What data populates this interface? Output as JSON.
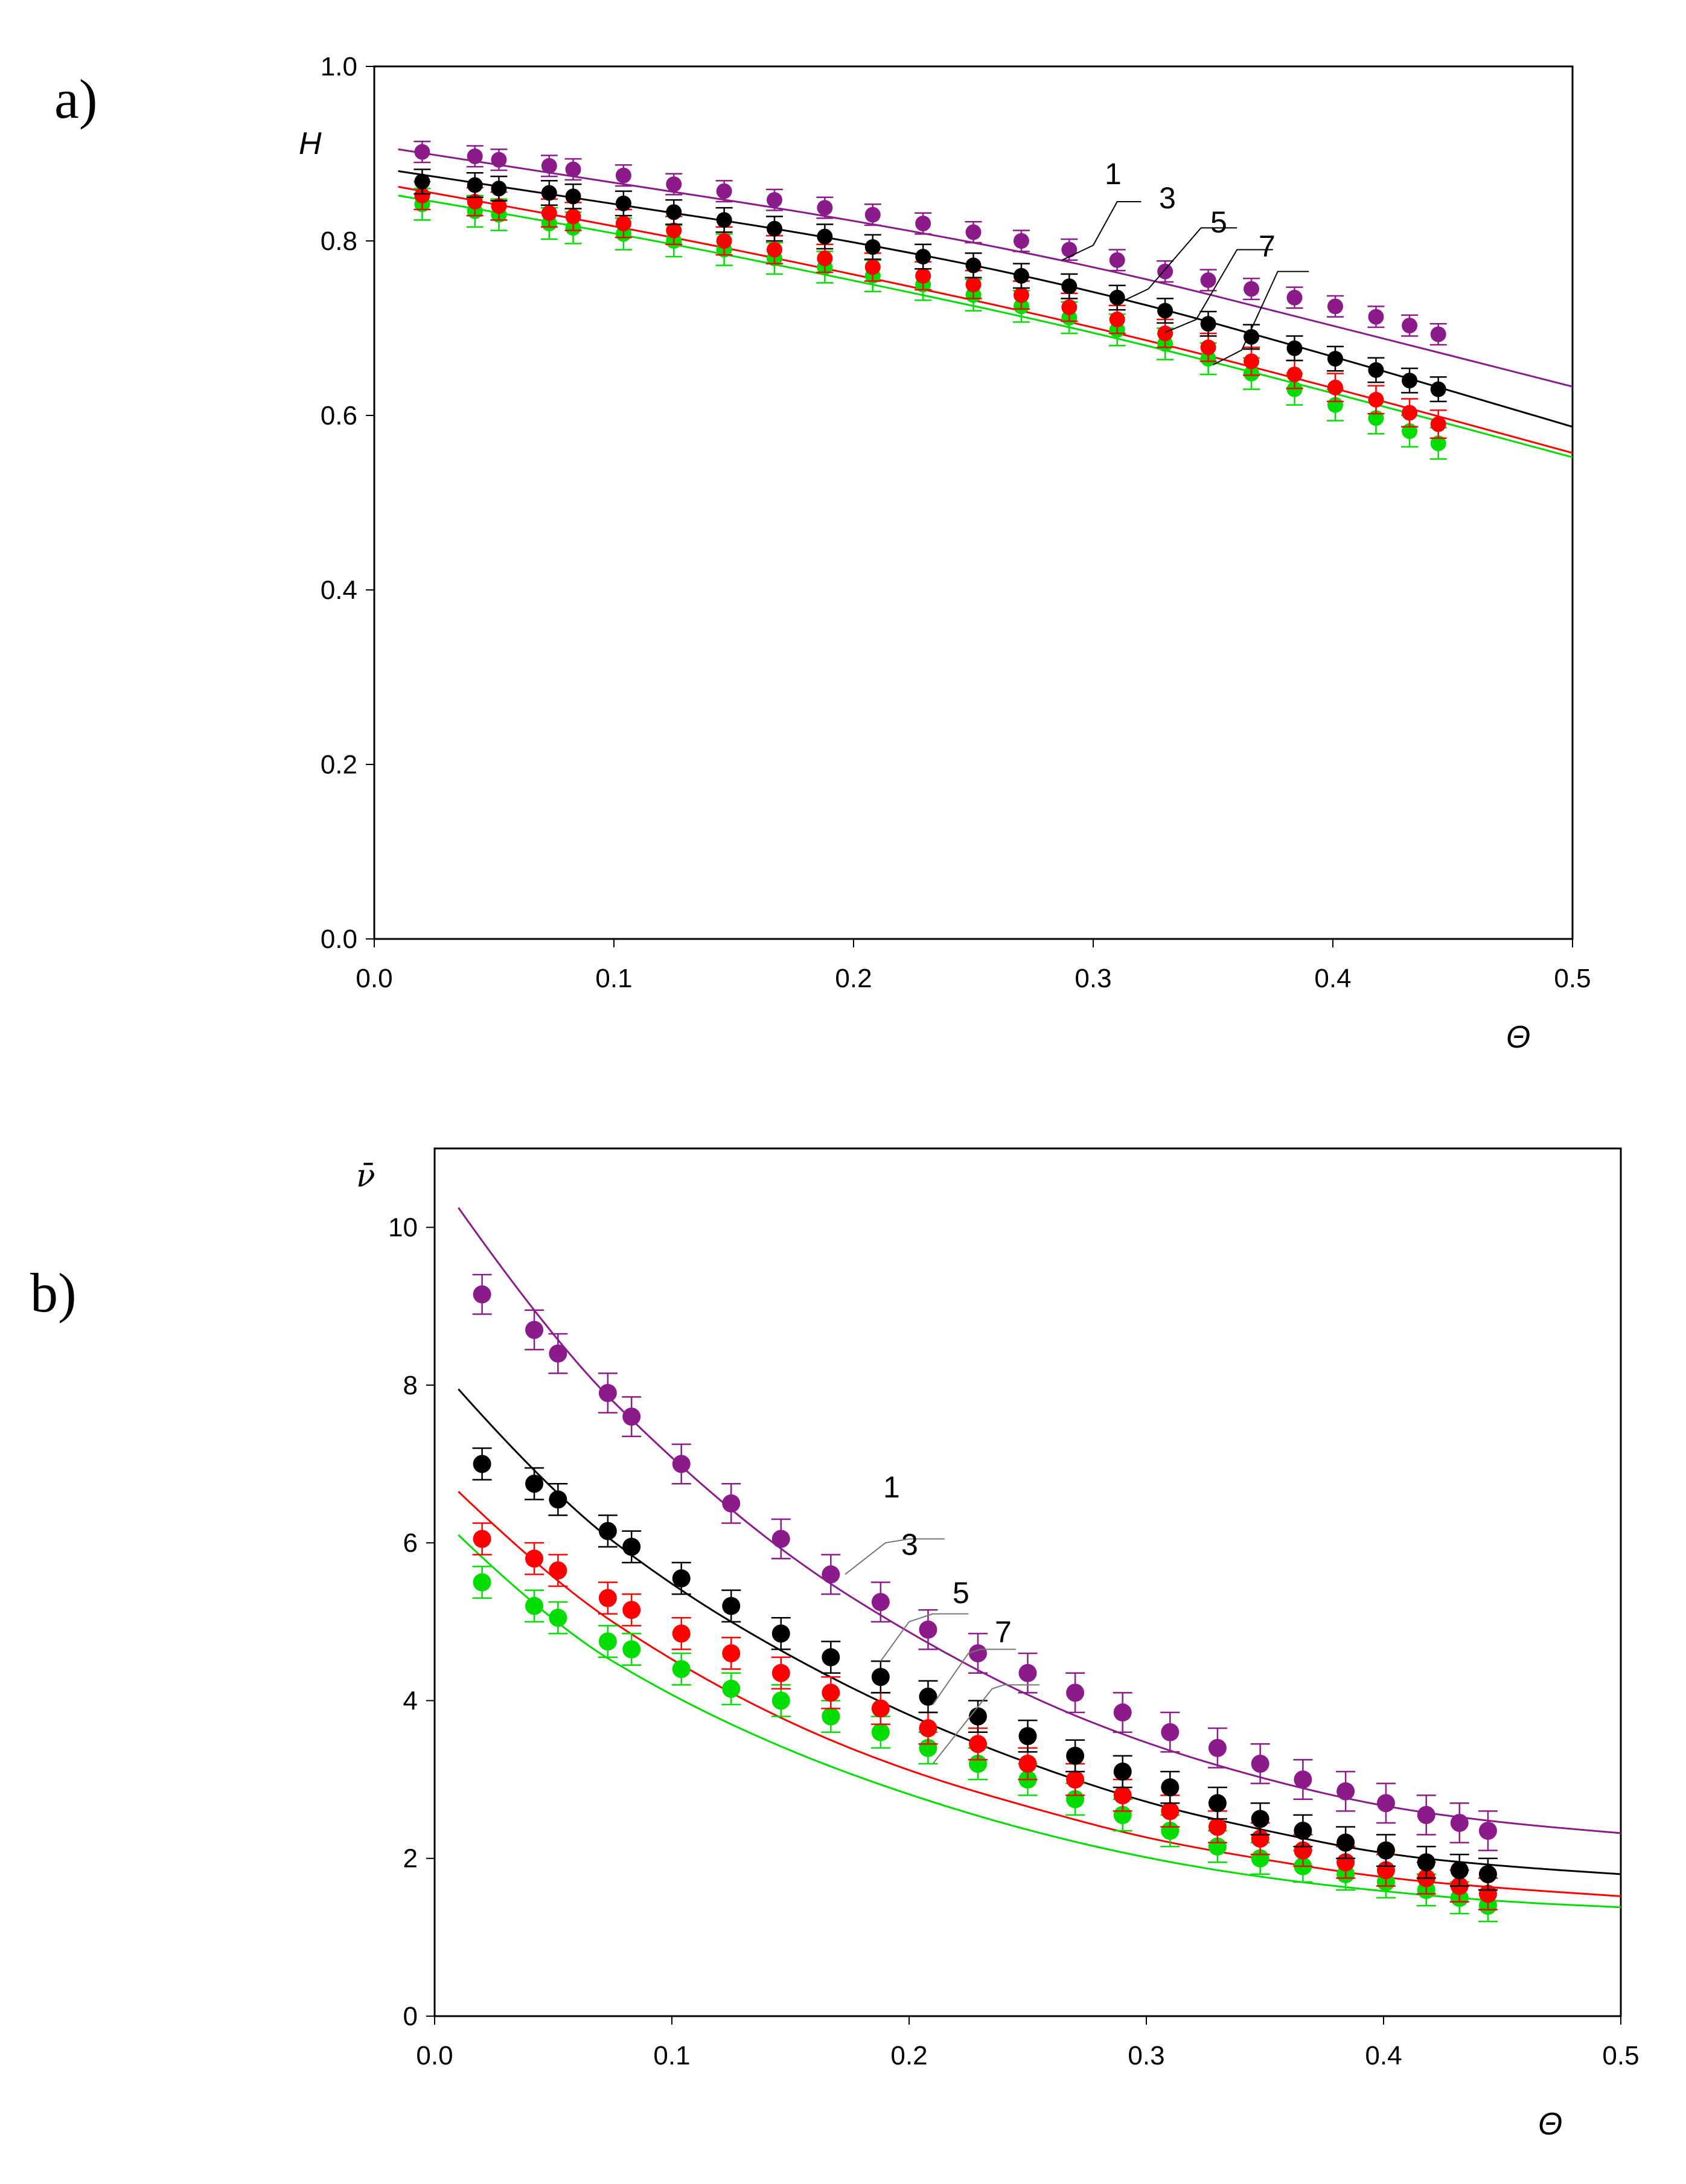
{
  "chart_data": [
    {
      "type": "scatter",
      "panel_label": "a)",
      "title": "",
      "xlabel": "Θ",
      "ylabel": "H",
      "xlim": [
        0.0,
        0.5
      ],
      "ylim": [
        0.0,
        1.0
      ],
      "x_ticks": [
        "0.0",
        "0.1",
        "0.2",
        "0.3",
        "0.4",
        "0.5"
      ],
      "y_ticks": [
        "0.0",
        "0.2",
        "0.4",
        "0.6",
        "0.8",
        "1.0"
      ],
      "grid": false,
      "x": [
        0.02,
        0.042,
        0.052,
        0.073,
        0.083,
        0.104,
        0.125,
        0.146,
        0.167,
        0.188,
        0.208,
        0.229,
        0.25,
        0.27,
        0.29,
        0.31,
        0.33,
        0.348,
        0.366,
        0.384,
        0.401,
        0.418,
        0.432,
        0.444
      ],
      "series": [
        {
          "name": "1",
          "color": "#8b1a8b",
          "values": [
            0.902,
            0.897,
            0.893,
            0.886,
            0.882,
            0.875,
            0.865,
            0.857,
            0.847,
            0.838,
            0.83,
            0.82,
            0.81,
            0.8,
            0.79,
            0.778,
            0.765,
            0.755,
            0.745,
            0.735,
            0.725,
            0.713,
            0.703,
            0.693
          ],
          "fit": [
            [
              0.01,
              0.905
            ],
            [
              0.1,
              0.867
            ],
            [
              0.2,
              0.824
            ],
            [
              0.3,
              0.772
            ],
            [
              0.4,
              0.703
            ],
            [
              0.5,
              0.633
            ]
          ]
        },
        {
          "name": "3",
          "color": "#000000",
          "values": [
            0.868,
            0.864,
            0.86,
            0.855,
            0.851,
            0.843,
            0.833,
            0.824,
            0.814,
            0.805,
            0.793,
            0.782,
            0.772,
            0.76,
            0.748,
            0.735,
            0.72,
            0.705,
            0.69,
            0.677,
            0.665,
            0.652,
            0.64,
            0.63
          ],
          "fit": [
            [
              0.01,
              0.88
            ],
            [
              0.1,
              0.843
            ],
            [
              0.2,
              0.8
            ],
            [
              0.3,
              0.744
            ],
            [
              0.4,
              0.668
            ],
            [
              0.5,
              0.587
            ]
          ]
        },
        {
          "name": "5",
          "color": "#ff0000",
          "values": [
            0.852,
            0.845,
            0.84,
            0.832,
            0.828,
            0.82,
            0.812,
            0.8,
            0.79,
            0.78,
            0.77,
            0.76,
            0.75,
            0.738,
            0.724,
            0.71,
            0.694,
            0.678,
            0.662,
            0.647,
            0.632,
            0.618,
            0.603,
            0.59
          ],
          "fit": [
            [
              0.01,
              0.862
            ],
            [
              0.1,
              0.818
            ],
            [
              0.2,
              0.762
            ],
            [
              0.3,
              0.702
            ],
            [
              0.4,
              0.632
            ],
            [
              0.5,
              0.557
            ]
          ]
        },
        {
          "name": "7",
          "color": "#00dd00",
          "values": [
            0.842,
            0.834,
            0.83,
            0.82,
            0.815,
            0.808,
            0.8,
            0.79,
            0.78,
            0.77,
            0.76,
            0.75,
            0.738,
            0.725,
            0.712,
            0.698,
            0.682,
            0.665,
            0.648,
            0.63,
            0.612,
            0.597,
            0.582,
            0.568
          ],
          "fit": [
            [
              0.01,
              0.852
            ],
            [
              0.1,
              0.81
            ],
            [
              0.2,
              0.755
            ],
            [
              0.3,
              0.696
            ],
            [
              0.4,
              0.626
            ],
            [
              0.5,
              0.552
            ]
          ]
        }
      ],
      "annotations": [
        "1",
        "3",
        "5",
        "7"
      ]
    },
    {
      "type": "scatter",
      "panel_label": "b)",
      "title": "",
      "xlabel": "Θ",
      "ylabel": "ν̄",
      "xlim": [
        0.0,
        0.5
      ],
      "ylim": [
        0,
        11
      ],
      "x_ticks": [
        "0.0",
        "0.1",
        "0.2",
        "0.3",
        "0.4",
        "0.5"
      ],
      "y_ticks": [
        "0",
        "2",
        "4",
        "6",
        "8",
        "10"
      ],
      "grid": false,
      "x": [
        0.02,
        0.042,
        0.052,
        0.073,
        0.083,
        0.104,
        0.125,
        0.146,
        0.167,
        0.188,
        0.208,
        0.229,
        0.25,
        0.27,
        0.29,
        0.31,
        0.33,
        0.348,
        0.366,
        0.384,
        0.401,
        0.418,
        0.432,
        0.444
      ],
      "series": [
        {
          "name": "1",
          "color": "#8b1a8b",
          "values": [
            9.15,
            8.7,
            8.4,
            7.9,
            7.6,
            7.0,
            6.5,
            6.05,
            5.6,
            5.25,
            4.9,
            4.6,
            4.35,
            4.1,
            3.85,
            3.6,
            3.4,
            3.2,
            3.0,
            2.85,
            2.7,
            2.55,
            2.45,
            2.35
          ],
          "fit": [
            [
              0.01,
              10.25
            ],
            [
              0.05,
              8.55
            ],
            [
              0.1,
              7.05
            ],
            [
              0.15,
              5.8
            ],
            [
              0.2,
              4.85
            ],
            [
              0.25,
              4.05
            ],
            [
              0.3,
              3.45
            ],
            [
              0.35,
              3.0
            ],
            [
              0.4,
              2.65
            ],
            [
              0.45,
              2.45
            ],
            [
              0.5,
              2.32
            ]
          ]
        },
        {
          "name": "3",
          "color": "#000000",
          "values": [
            7.0,
            6.75,
            6.55,
            6.15,
            5.95,
            5.55,
            5.2,
            4.85,
            4.55,
            4.3,
            4.05,
            3.8,
            3.55,
            3.3,
            3.1,
            2.9,
            2.7,
            2.5,
            2.35,
            2.2,
            2.1,
            1.95,
            1.85,
            1.8
          ],
          "fit": [
            [
              0.01,
              7.95
            ],
            [
              0.05,
              6.6
            ],
            [
              0.1,
              5.45
            ],
            [
              0.15,
              4.55
            ],
            [
              0.2,
              3.8
            ],
            [
              0.25,
              3.2
            ],
            [
              0.3,
              2.7
            ],
            [
              0.35,
              2.35
            ],
            [
              0.4,
              2.05
            ],
            [
              0.45,
              1.9
            ],
            [
              0.5,
              1.8
            ]
          ]
        },
        {
          "name": "5",
          "color": "#ff0000",
          "values": [
            6.05,
            5.8,
            5.65,
            5.3,
            5.15,
            4.85,
            4.6,
            4.35,
            4.1,
            3.9,
            3.65,
            3.45,
            3.2,
            3.0,
            2.8,
            2.6,
            2.4,
            2.25,
            2.1,
            1.95,
            1.85,
            1.75,
            1.65,
            1.55
          ],
          "fit": [
            [
              0.01,
              6.65
            ],
            [
              0.05,
              5.5
            ],
            [
              0.1,
              4.5
            ],
            [
              0.15,
              3.7
            ],
            [
              0.2,
              3.1
            ],
            [
              0.25,
              2.65
            ],
            [
              0.3,
              2.25
            ],
            [
              0.35,
              1.98
            ],
            [
              0.4,
              1.75
            ],
            [
              0.45,
              1.62
            ],
            [
              0.5,
              1.52
            ]
          ]
        },
        {
          "name": "7",
          "color": "#00dd00",
          "values": [
            5.5,
            5.2,
            5.05,
            4.75,
            4.65,
            4.4,
            4.15,
            4.0,
            3.8,
            3.6,
            3.4,
            3.2,
            3.0,
            2.75,
            2.55,
            2.35,
            2.15,
            2.0,
            1.9,
            1.8,
            1.7,
            1.6,
            1.5,
            1.4
          ],
          "fit": [
            [
              0.01,
              6.1
            ],
            [
              0.05,
              4.95
            ],
            [
              0.1,
              4.05
            ],
            [
              0.15,
              3.35
            ],
            [
              0.2,
              2.8
            ],
            [
              0.25,
              2.35
            ],
            [
              0.3,
              2.0
            ],
            [
              0.35,
              1.75
            ],
            [
              0.4,
              1.58
            ],
            [
              0.45,
              1.45
            ],
            [
              0.5,
              1.38
            ]
          ]
        }
      ],
      "annotations": [
        "1",
        "3",
        "5",
        "7"
      ]
    }
  ]
}
